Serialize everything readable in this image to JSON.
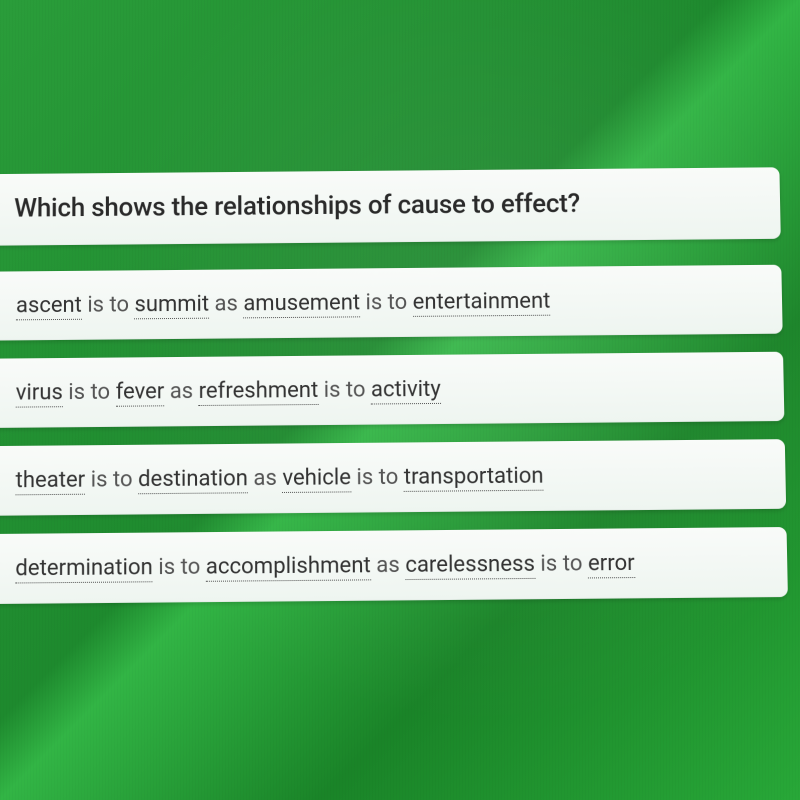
{
  "question": {
    "text": "Which shows the relationships of cause to effect?"
  },
  "answers": [
    {
      "w1": "ascent",
      "c1": " is to ",
      "w2": "summit",
      "c2": " as ",
      "w3": "amusement",
      "c3": " is to ",
      "w4": "entertainment"
    },
    {
      "w1": "virus",
      "c1": " is to ",
      "w2": "fever",
      "c2": " as ",
      "w3": "refreshment",
      "c3": " is to ",
      "w4": "activity"
    },
    {
      "w1": "theater",
      "c1": " is to ",
      "w2": "destination",
      "c2": " as ",
      "w3": "vehicle",
      "c3": " is to ",
      "w4": "transportation"
    },
    {
      "w1": "determination",
      "c1": " is to ",
      "w2": "accomplishment",
      "c2": " as ",
      "w3": "carelessness",
      "c3": " is to ",
      "w4": "error"
    }
  ],
  "style": {
    "background_color": "#1e8a2e",
    "card_background": "#f4f9f5",
    "question_fontsize": 26,
    "answer_fontsize": 22,
    "text_color": "#333333",
    "underline_style": "dotted"
  }
}
